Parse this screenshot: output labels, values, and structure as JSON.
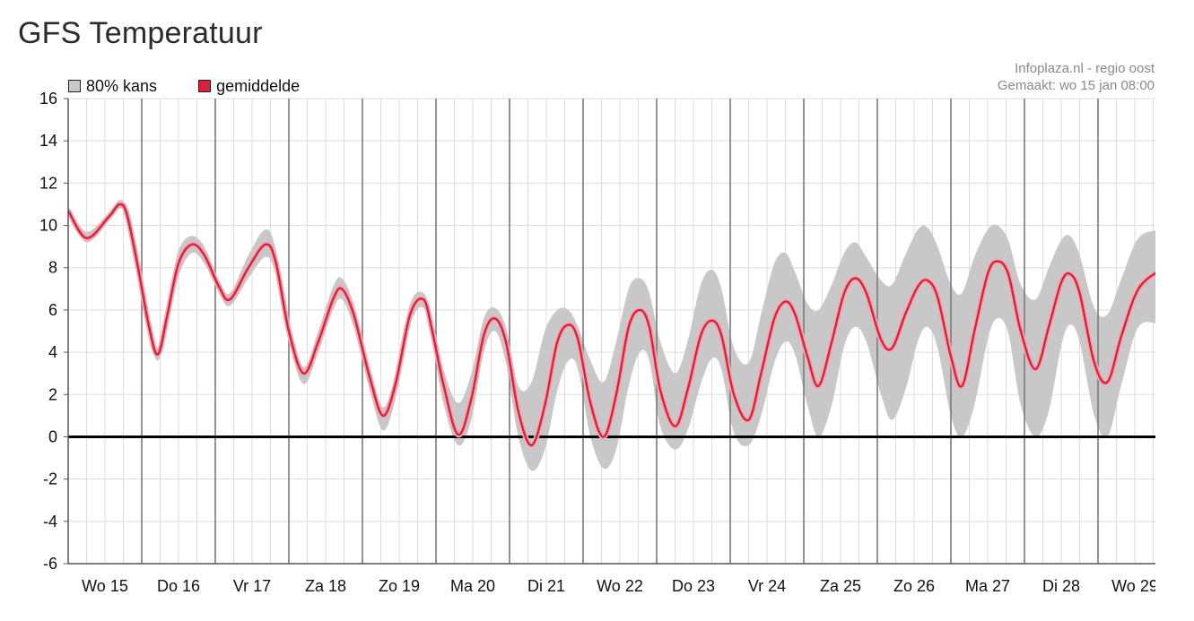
{
  "page": {
    "title": "GFS Temperatuur"
  },
  "credit": {
    "line1": "Infoplaza.nl - regio oost",
    "line2": "Gemaakt: wo 15 jan 08:00"
  },
  "colors": {
    "band": "#c8c8c8",
    "band_edge": "#b4b4b4",
    "mean": "#d7223a",
    "mean_glow": "#f2a9b3",
    "grid": "#dddddd",
    "day_line": "#7a7a7a",
    "zero_line": "#000000"
  },
  "chart_data": {
    "type": "line",
    "title": "GFS Temperatuur",
    "legend_placement": "top-left",
    "legend": [
      {
        "label": "80% kans",
        "color": "#c8c8c8"
      },
      {
        "label": "gemiddelde",
        "color": "#d7223a"
      }
    ],
    "x_unit": "days from Wo 15 00:00",
    "xlim": [
      0,
      14.85
    ],
    "ylim": [
      -6,
      16
    ],
    "yticks": [
      -6,
      -4,
      -2,
      0,
      2,
      4,
      6,
      8,
      10,
      12,
      14,
      16
    ],
    "grid": true,
    "day_labels": [
      "Wo 15",
      "Do 16",
      "Vr 17",
      "Za 18",
      "Zo 19",
      "Ma 20",
      "Di 21",
      "Wo 22",
      "Do 23",
      "Vr 24",
      "Za 25",
      "Zo 26",
      "Ma 27",
      "Di 28",
      "Wo 29"
    ],
    "series": [
      {
        "name": "gemiddelde",
        "points": [
          [
            0,
            10.7
          ],
          [
            0.25,
            9.4
          ],
          [
            0.55,
            10.4
          ],
          [
            0.7,
            11.0
          ],
          [
            0.8,
            10.5
          ],
          [
            0.95,
            8.0
          ],
          [
            1.1,
            5.2
          ],
          [
            1.22,
            3.9
          ],
          [
            1.35,
            5.8
          ],
          [
            1.5,
            8.2
          ],
          [
            1.68,
            9.1
          ],
          [
            1.85,
            8.6
          ],
          [
            2.05,
            7.1
          ],
          [
            2.2,
            6.5
          ],
          [
            2.45,
            8.0
          ],
          [
            2.68,
            9.1
          ],
          [
            2.82,
            8.3
          ],
          [
            3.0,
            5.0
          ],
          [
            3.2,
            3.0
          ],
          [
            3.4,
            4.5
          ],
          [
            3.6,
            6.5
          ],
          [
            3.72,
            7.0
          ],
          [
            3.88,
            5.8
          ],
          [
            4.1,
            2.8
          ],
          [
            4.28,
            1.0
          ],
          [
            4.45,
            2.5
          ],
          [
            4.65,
            5.8
          ],
          [
            4.83,
            6.5
          ],
          [
            4.95,
            5.0
          ],
          [
            5.1,
            2.5
          ],
          [
            5.3,
            0.1
          ],
          [
            5.48,
            1.8
          ],
          [
            5.65,
            4.8
          ],
          [
            5.8,
            5.6
          ],
          [
            5.95,
            4.5
          ],
          [
            6.12,
            1.2
          ],
          [
            6.3,
            -0.4
          ],
          [
            6.48,
            1.5
          ],
          [
            6.65,
            4.5
          ],
          [
            6.8,
            5.3
          ],
          [
            6.93,
            4.6
          ],
          [
            7.1,
            1.6
          ],
          [
            7.28,
            0.0
          ],
          [
            7.45,
            2.0
          ],
          [
            7.62,
            5.2
          ],
          [
            7.77,
            6.0
          ],
          [
            7.9,
            5.2
          ],
          [
            8.05,
            2.2
          ],
          [
            8.25,
            0.5
          ],
          [
            8.42,
            2.2
          ],
          [
            8.6,
            4.8
          ],
          [
            8.75,
            5.5
          ],
          [
            8.88,
            4.8
          ],
          [
            9.05,
            2.0
          ],
          [
            9.25,
            0.8
          ],
          [
            9.42,
            3.0
          ],
          [
            9.6,
            5.6
          ],
          [
            9.75,
            6.4
          ],
          [
            9.88,
            5.8
          ],
          [
            10.05,
            3.8
          ],
          [
            10.2,
            2.4
          ],
          [
            10.38,
            4.5
          ],
          [
            10.55,
            6.8
          ],
          [
            10.7,
            7.5
          ],
          [
            10.85,
            6.8
          ],
          [
            11.05,
            4.6
          ],
          [
            11.2,
            4.2
          ],
          [
            11.38,
            5.8
          ],
          [
            11.55,
            7.1
          ],
          [
            11.68,
            7.4
          ],
          [
            11.82,
            6.6
          ],
          [
            12.0,
            3.8
          ],
          [
            12.15,
            2.4
          ],
          [
            12.32,
            5.0
          ],
          [
            12.5,
            7.7
          ],
          [
            12.63,
            8.3
          ],
          [
            12.78,
            7.7
          ],
          [
            12.95,
            5.0
          ],
          [
            13.15,
            3.2
          ],
          [
            13.33,
            5.2
          ],
          [
            13.5,
            7.3
          ],
          [
            13.62,
            7.7
          ],
          [
            13.75,
            6.8
          ],
          [
            13.95,
            3.5
          ],
          [
            14.13,
            2.6
          ],
          [
            14.32,
            4.8
          ],
          [
            14.55,
            7.0
          ],
          [
            14.85,
            7.9
          ]
        ]
      },
      {
        "name": "80% kans upper",
        "points": [
          [
            0,
            10.9
          ],
          [
            0.25,
            9.7
          ],
          [
            0.55,
            10.6
          ],
          [
            0.7,
            11.2
          ],
          [
            0.8,
            10.7
          ],
          [
            0.95,
            8.3
          ],
          [
            1.1,
            5.5
          ],
          [
            1.22,
            4.2
          ],
          [
            1.35,
            6.3
          ],
          [
            1.5,
            8.8
          ],
          [
            1.68,
            9.5
          ],
          [
            1.85,
            9.0
          ],
          [
            2.05,
            7.4
          ],
          [
            2.2,
            6.8
          ],
          [
            2.45,
            8.6
          ],
          [
            2.68,
            9.8
          ],
          [
            2.82,
            8.9
          ],
          [
            3.0,
            5.4
          ],
          [
            3.2,
            3.3
          ],
          [
            3.4,
            5.0
          ],
          [
            3.6,
            7.1
          ],
          [
            3.72,
            7.5
          ],
          [
            3.88,
            6.3
          ],
          [
            4.1,
            3.3
          ],
          [
            4.28,
            1.4
          ],
          [
            4.45,
            3.0
          ],
          [
            4.65,
            6.3
          ],
          [
            4.83,
            6.8
          ],
          [
            4.95,
            5.5
          ],
          [
            5.1,
            3.2
          ],
          [
            5.3,
            1.6
          ],
          [
            5.48,
            3.0
          ],
          [
            5.65,
            5.6
          ],
          [
            5.8,
            6.1
          ],
          [
            5.95,
            5.2
          ],
          [
            6.12,
            2.4
          ],
          [
            6.3,
            2.6
          ],
          [
            6.48,
            5.0
          ],
          [
            6.65,
            6.0
          ],
          [
            6.8,
            6.0
          ],
          [
            6.93,
            5.2
          ],
          [
            7.1,
            3.6
          ],
          [
            7.28,
            2.6
          ],
          [
            7.45,
            4.5
          ],
          [
            7.62,
            7.0
          ],
          [
            7.77,
            7.5
          ],
          [
            7.9,
            6.8
          ],
          [
            8.05,
            4.5
          ],
          [
            8.25,
            3.0
          ],
          [
            8.42,
            4.5
          ],
          [
            8.6,
            7.2
          ],
          [
            8.75,
            7.9
          ],
          [
            8.88,
            7.0
          ],
          [
            9.05,
            4.2
          ],
          [
            9.25,
            3.5
          ],
          [
            9.42,
            5.8
          ],
          [
            9.6,
            8.2
          ],
          [
            9.75,
            8.7
          ],
          [
            9.88,
            7.8
          ],
          [
            10.05,
            6.3
          ],
          [
            10.2,
            6.0
          ],
          [
            10.38,
            7.2
          ],
          [
            10.55,
            8.7
          ],
          [
            10.7,
            9.2
          ],
          [
            10.85,
            8.5
          ],
          [
            11.05,
            7.4
          ],
          [
            11.2,
            7.2
          ],
          [
            11.38,
            8.6
          ],
          [
            11.55,
            9.8
          ],
          [
            11.68,
            9.9
          ],
          [
            11.82,
            9.0
          ],
          [
            12.0,
            7.2
          ],
          [
            12.15,
            6.8
          ],
          [
            12.32,
            8.5
          ],
          [
            12.5,
            9.8
          ],
          [
            12.63,
            10.0
          ],
          [
            12.78,
            9.3
          ],
          [
            12.95,
            7.2
          ],
          [
            13.15,
            6.5
          ],
          [
            13.33,
            8.0
          ],
          [
            13.5,
            9.3
          ],
          [
            13.62,
            9.5
          ],
          [
            13.75,
            8.6
          ],
          [
            13.95,
            6.1
          ],
          [
            14.13,
            5.8
          ],
          [
            14.32,
            7.5
          ],
          [
            14.55,
            9.4
          ],
          [
            14.85,
            9.8
          ]
        ]
      },
      {
        "name": "80% kans lower",
        "points": [
          [
            0,
            10.5
          ],
          [
            0.25,
            9.2
          ],
          [
            0.55,
            10.2
          ],
          [
            0.7,
            10.8
          ],
          [
            0.8,
            10.3
          ],
          [
            0.95,
            7.7
          ],
          [
            1.1,
            4.9
          ],
          [
            1.22,
            3.6
          ],
          [
            1.35,
            5.3
          ],
          [
            1.5,
            7.6
          ],
          [
            1.68,
            8.7
          ],
          [
            1.85,
            8.2
          ],
          [
            2.05,
            6.8
          ],
          [
            2.2,
            6.2
          ],
          [
            2.45,
            7.5
          ],
          [
            2.68,
            8.5
          ],
          [
            2.82,
            7.7
          ],
          [
            3.0,
            4.5
          ],
          [
            3.2,
            2.5
          ],
          [
            3.4,
            4.0
          ],
          [
            3.6,
            6.0
          ],
          [
            3.72,
            6.5
          ],
          [
            3.88,
            5.2
          ],
          [
            4.1,
            2.2
          ],
          [
            4.28,
            0.3
          ],
          [
            4.45,
            1.8
          ],
          [
            4.65,
            5.3
          ],
          [
            4.83,
            6.1
          ],
          [
            4.95,
            4.5
          ],
          [
            5.1,
            1.6
          ],
          [
            5.3,
            -0.4
          ],
          [
            5.48,
            0.8
          ],
          [
            5.65,
            4.0
          ],
          [
            5.8,
            5.0
          ],
          [
            5.95,
            3.5
          ],
          [
            6.12,
            0.0
          ],
          [
            6.3,
            -1.6
          ],
          [
            6.48,
            -0.6
          ],
          [
            6.65,
            2.2
          ],
          [
            6.8,
            3.6
          ],
          [
            6.93,
            3.2
          ],
          [
            7.1,
            0.0
          ],
          [
            7.28,
            -1.5
          ],
          [
            7.45,
            -0.6
          ],
          [
            7.62,
            2.4
          ],
          [
            7.77,
            4.0
          ],
          [
            7.9,
            3.6
          ],
          [
            8.05,
            0.5
          ],
          [
            8.25,
            -0.6
          ],
          [
            8.42,
            0.3
          ],
          [
            8.6,
            2.5
          ],
          [
            8.75,
            3.7
          ],
          [
            8.88,
            3.2
          ],
          [
            9.05,
            0.2
          ],
          [
            9.25,
            -0.4
          ],
          [
            9.42,
            1.0
          ],
          [
            9.6,
            3.5
          ],
          [
            9.75,
            4.5
          ],
          [
            9.88,
            3.9
          ],
          [
            10.05,
            1.5
          ],
          [
            10.2,
            0.0
          ],
          [
            10.38,
            1.5
          ],
          [
            10.55,
            4.3
          ],
          [
            10.7,
            5.2
          ],
          [
            10.85,
            4.5
          ],
          [
            11.05,
            2.0
          ],
          [
            11.2,
            0.8
          ],
          [
            11.38,
            2.2
          ],
          [
            11.55,
            4.5
          ],
          [
            11.68,
            5.2
          ],
          [
            11.82,
            4.2
          ],
          [
            12.0,
            1.0
          ],
          [
            12.15,
            0.0
          ],
          [
            12.32,
            1.5
          ],
          [
            12.5,
            4.6
          ],
          [
            12.63,
            5.6
          ],
          [
            12.78,
            4.9
          ],
          [
            12.95,
            1.5
          ],
          [
            13.15,
            0.0
          ],
          [
            13.33,
            1.2
          ],
          [
            13.5,
            4.3
          ],
          [
            13.62,
            5.3
          ],
          [
            13.75,
            4.5
          ],
          [
            13.95,
            1.0
          ],
          [
            14.13,
            0.0
          ],
          [
            14.32,
            2.5
          ],
          [
            14.55,
            5.2
          ],
          [
            14.85,
            5.3
          ]
        ]
      }
    ]
  }
}
